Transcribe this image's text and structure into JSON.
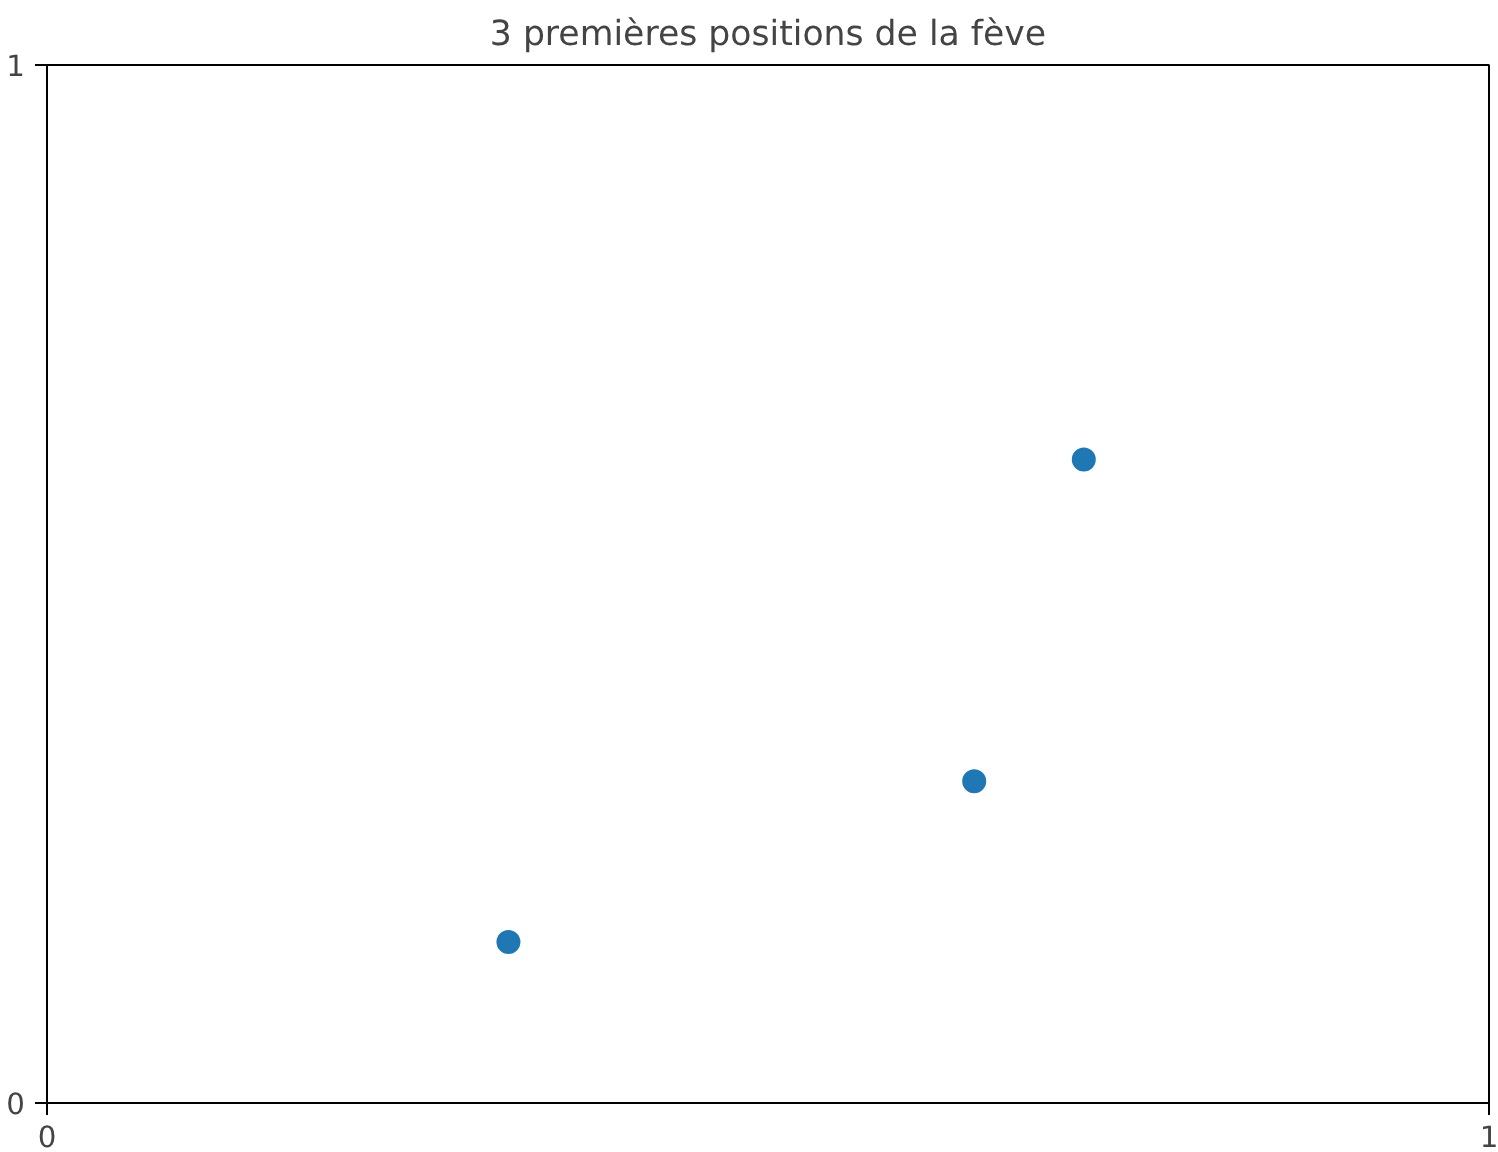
{
  "chart_data": {
    "type": "scatter",
    "title": "3 premières positions de la fève",
    "x": [
      0.32,
      0.643,
      0.719
    ],
    "series": [
      {
        "color": "#1f77b4",
        "values": [
          0.155,
          0.31,
          0.62
        ]
      }
    ],
    "xlim": [
      0,
      1
    ],
    "ylim": [
      0,
      1
    ],
    "xticks": [
      0,
      1
    ],
    "yticks": [
      0,
      1
    ],
    "marker": "circle"
  }
}
